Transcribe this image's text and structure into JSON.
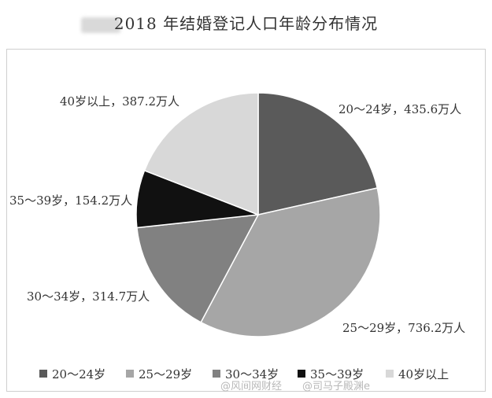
{
  "chart_data": {
    "type": "pie",
    "title": "2018 年结婚登记人口年龄分布情况",
    "slices": [
      {
        "label": "20～24岁",
        "value": 435.6,
        "data_label": "20～24岁，435.6万人",
        "color": "#5a5a5a"
      },
      {
        "label": "25～29岁",
        "value": 736.2,
        "data_label": "25～29岁，736.2万人",
        "color": "#a6a6a6"
      },
      {
        "label": "30～34岁",
        "value": 314.7,
        "data_label": "30～34岁，314.7万人",
        "color": "#818181"
      },
      {
        "label": "35～39岁",
        "value": 154.2,
        "data_label": "35～39岁，154.2万人",
        "color": "#111111"
      },
      {
        "label": "40岁以上",
        "value": 387.2,
        "data_label": "40岁以上，387.2万人",
        "color": "#d8d8d8"
      }
    ],
    "legend_position": "bottom"
  },
  "watermark": "@风间网财经　　@司马子殿渊e"
}
